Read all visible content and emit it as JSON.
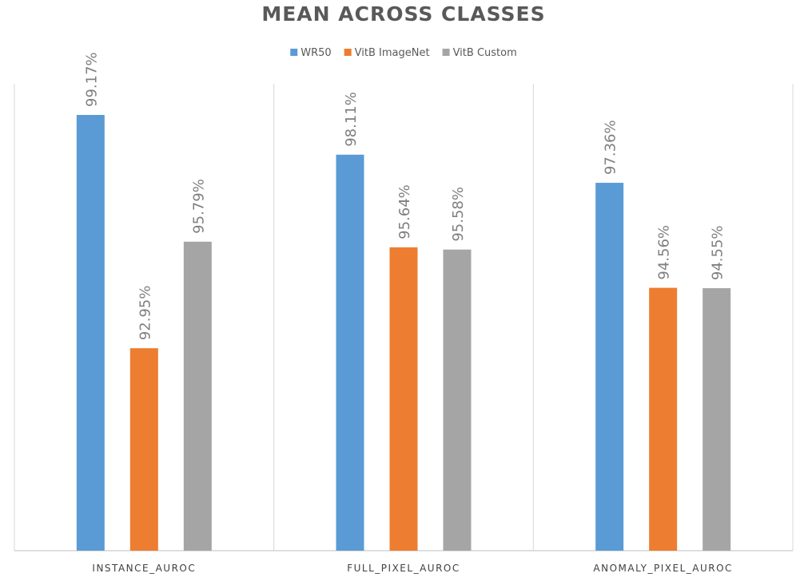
{
  "chart_data": {
    "type": "bar",
    "title": "MEAN ACROSS CLASSES",
    "categories": [
      "INSTANCE_AUROC",
      "FULL_PIXEL_AUROC",
      "ANOMALY_PIXEL_AUROC"
    ],
    "series": [
      {
        "name": "WR50",
        "color": "#5b9bd5",
        "values": [
          99.17,
          98.11,
          97.36
        ],
        "labels": [
          "99.17%",
          "98.11%",
          "97.36%"
        ]
      },
      {
        "name": "VitB ImageNet",
        "color": "#ed7d31",
        "values": [
          92.95,
          95.64,
          94.56
        ],
        "labels": [
          "92.95%",
          "95.64%",
          "94.56%"
        ]
      },
      {
        "name": "VitB Custom",
        "color": "#a5a5a5",
        "values": [
          95.79,
          95.58,
          94.55
        ],
        "labels": [
          "95.79%",
          "95.58%",
          "94.55%"
        ]
      }
    ],
    "ylim": [
      87.55,
      100.0
    ],
    "legend_position": "top",
    "gridlines": "vertical-category-separators",
    "data_label_orientation": "vertical"
  }
}
